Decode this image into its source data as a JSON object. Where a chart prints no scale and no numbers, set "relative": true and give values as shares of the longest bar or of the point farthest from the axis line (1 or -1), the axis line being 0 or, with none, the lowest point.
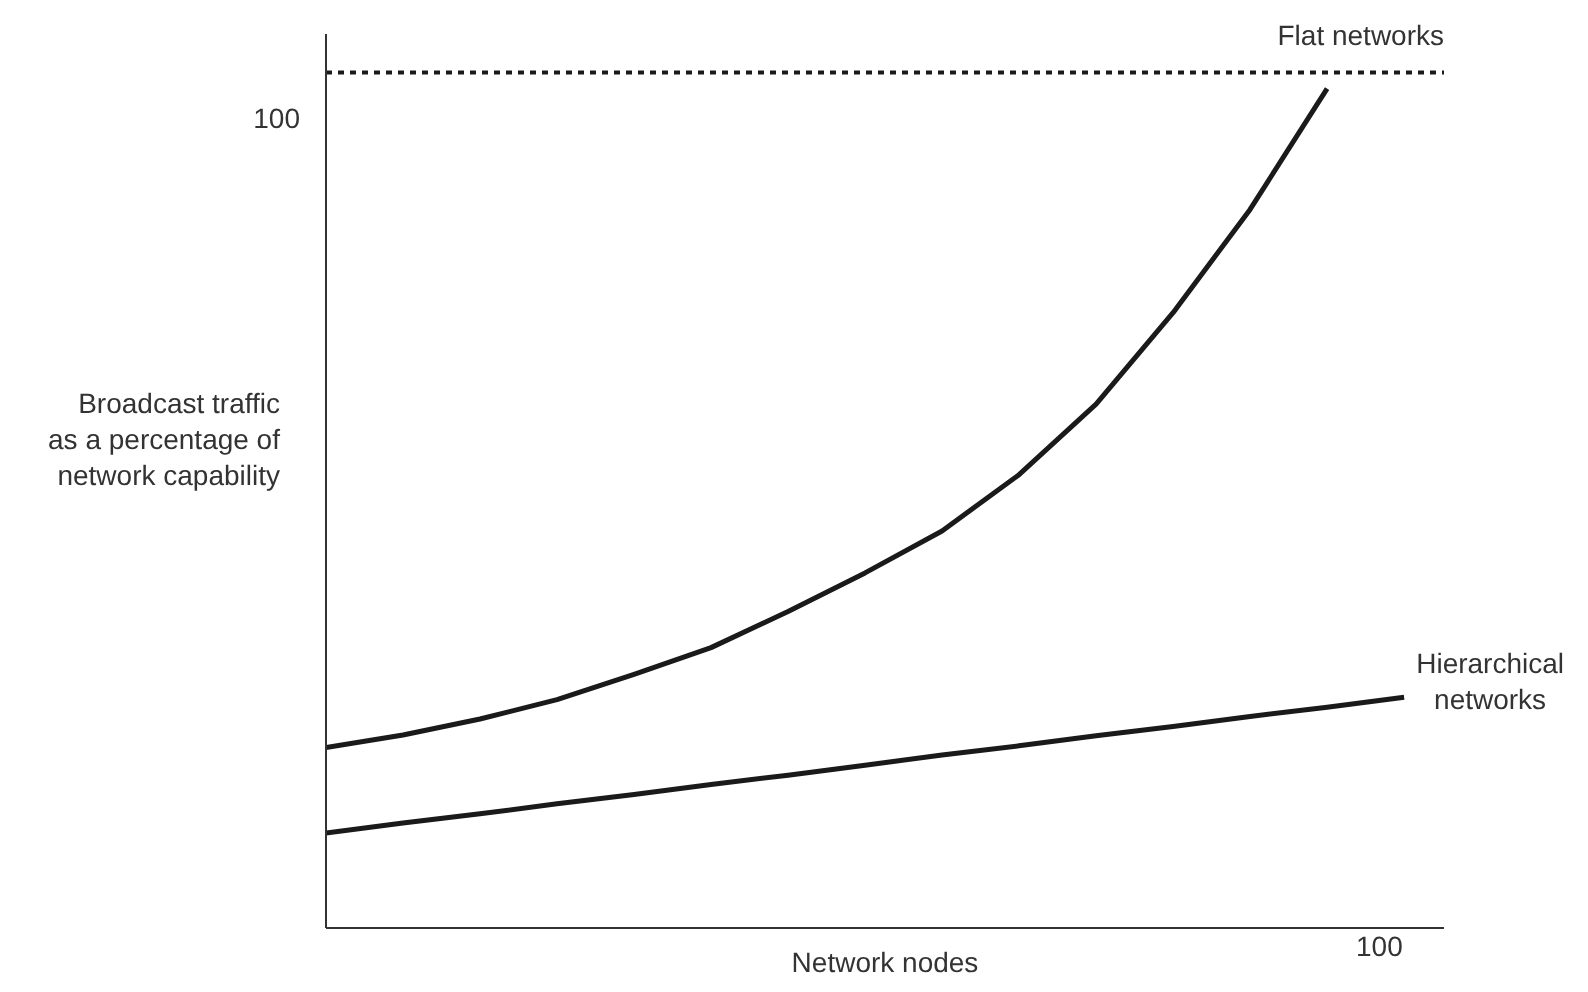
{
  "chart_data": {
    "type": "line",
    "relative": true,
    "xlabel": "Network nodes",
    "ylabel": "Broadcast traffic\nas a percentage of\nnetwork capability",
    "annotations": [
      "100",
      "100"
    ],
    "categories": [
      null,
      null,
      null,
      null,
      null,
      null,
      null,
      null,
      null,
      null,
      null,
      null,
      null,
      null,
      null
    ],
    "series": [
      {
        "name": "Flat networks",
        "color": "#1a1a1a",
        "values": [
          0.215,
          0.23,
          0.249,
          0.272,
          0.302,
          0.334,
          0.377,
          0.423,
          0.473,
          0.54,
          0.624,
          0.733,
          0.856,
          1,
          null
        ]
      },
      {
        "name": "Hierarchical\nnetworks",
        "color": "#1a1a1a",
        "values": [
          0.113,
          0.125,
          0.136,
          0.148,
          0.159,
          0.171,
          0.182,
          0.194,
          0.206,
          0.217,
          0.229,
          0.24,
          0.252,
          0.263,
          0.275
        ]
      }
    ],
    "ref_lines": [
      {
        "axis": "y",
        "value": 1.019,
        "color": "#1a1a1a",
        "line_style": "dotted"
      }
    ],
    "line_style": "solid",
    "marker": "none"
  }
}
